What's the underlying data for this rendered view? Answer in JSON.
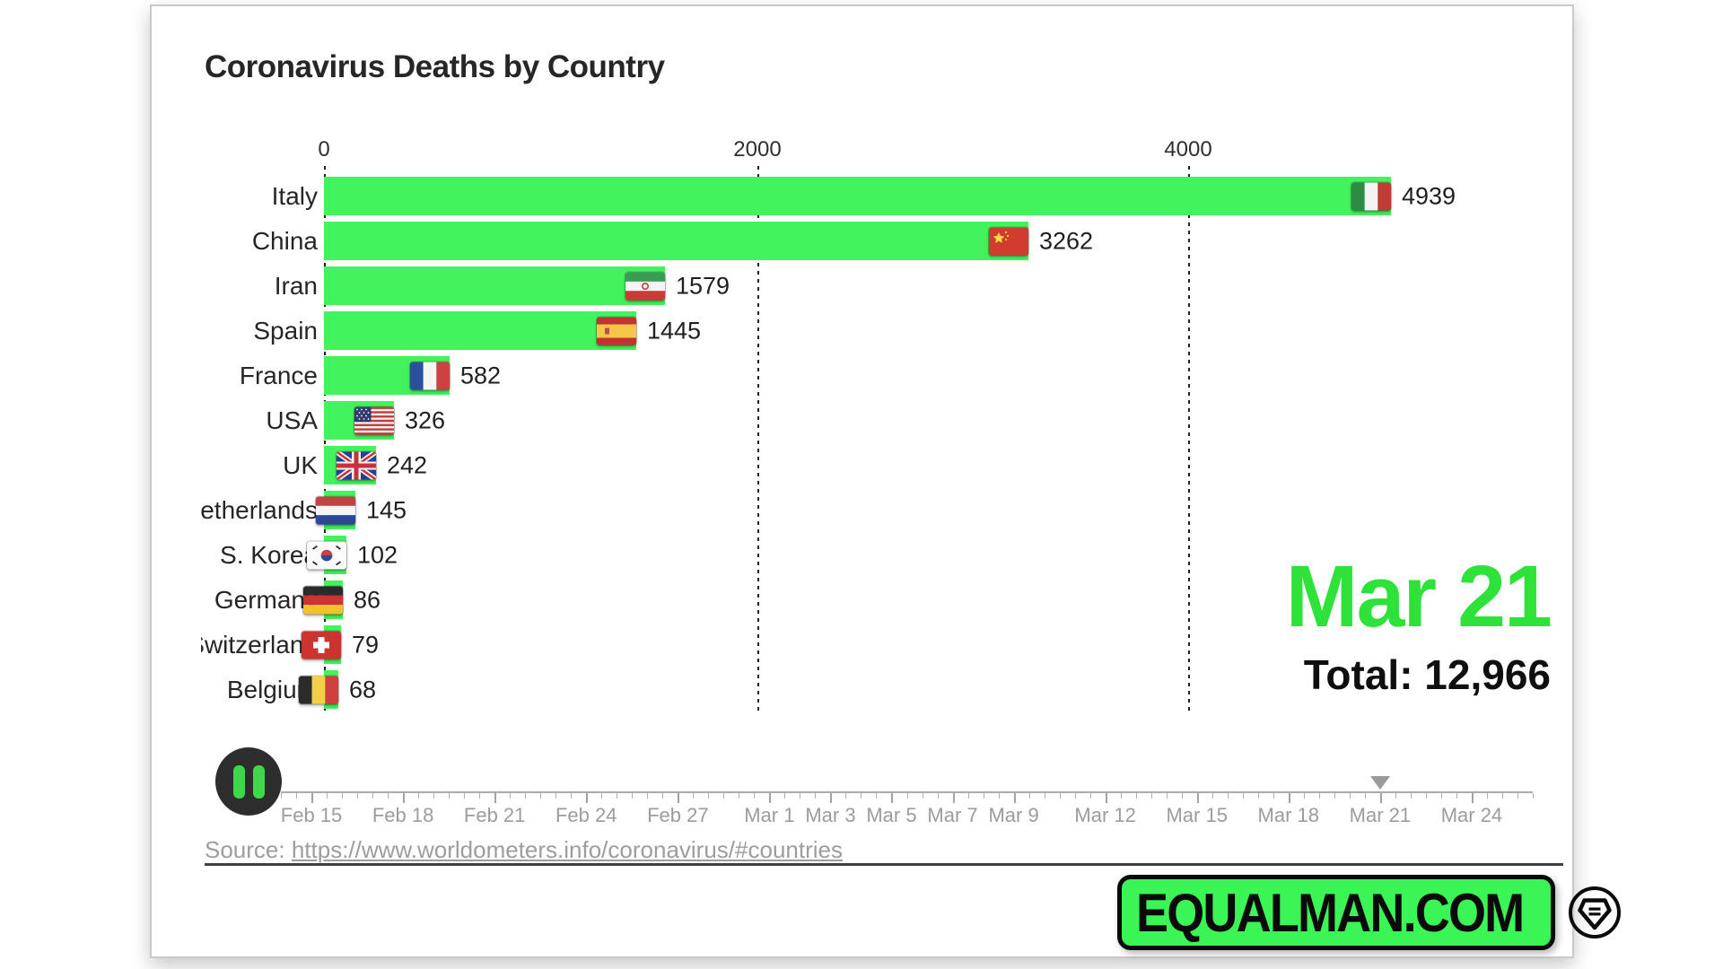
{
  "window": {
    "title": "Coronavirus Deaths by Country"
  },
  "chart_data": {
    "type": "bar",
    "orientation": "horizontal",
    "title": "Coronavirus Deaths by Country",
    "bar_color": "#43f35d",
    "x_axis": {
      "tick_labels": [
        "0",
        "2000",
        "4000"
      ],
      "tick_values": [
        0,
        2000,
        4000
      ],
      "grid": "dashed-vertical",
      "range_max": 5200
    },
    "categories": [
      "Italy",
      "China",
      "Iran",
      "Spain",
      "France",
      "USA",
      "UK",
      "Netherlands",
      "S. Korea",
      "Germany",
      "Switzerland",
      "Belgium"
    ],
    "values": [
      4939,
      3262,
      1579,
      1445,
      582,
      326,
      242,
      145,
      102,
      86,
      79,
      68
    ],
    "rows": [
      {
        "label": "Italy",
        "value": 4939,
        "value_label": "4939",
        "flag": "italy",
        "flag_icon": "flag-italy-icon"
      },
      {
        "label": "China",
        "value": 3262,
        "value_label": "3262",
        "flag": "china",
        "flag_icon": "flag-china-icon"
      },
      {
        "label": "Iran",
        "value": 1579,
        "value_label": "1579",
        "flag": "iran",
        "flag_icon": "flag-iran-icon"
      },
      {
        "label": "Spain",
        "value": 1445,
        "value_label": "1445",
        "flag": "spain",
        "flag_icon": "flag-spain-icon"
      },
      {
        "label": "France",
        "value": 582,
        "value_label": "582",
        "flag": "france",
        "flag_icon": "flag-france-icon"
      },
      {
        "label": "USA",
        "value": 326,
        "value_label": "326",
        "flag": "usa",
        "flag_icon": "flag-usa-icon"
      },
      {
        "label": "UK",
        "value": 242,
        "value_label": "242",
        "flag": "uk",
        "flag_icon": "flag-uk-icon"
      },
      {
        "label": "Netherlands",
        "value": 145,
        "value_label": "145",
        "flag": "netherlands",
        "flag_icon": "flag-netherlands-icon"
      },
      {
        "label": "S. Korea",
        "value": 102,
        "value_label": "102",
        "flag": "skorea",
        "flag_icon": "flag-south-korea-icon"
      },
      {
        "label": "Germany",
        "value": 86,
        "value_label": "86",
        "flag": "germany",
        "flag_icon": "flag-germany-icon"
      },
      {
        "label": "Switzerland",
        "value": 79,
        "value_label": "79",
        "flag": "switzerland",
        "flag_icon": "flag-switzerland-icon"
      },
      {
        "label": "Belgium",
        "value": 68,
        "value_label": "68",
        "flag": "belgium",
        "flag_icon": "flag-belgium-icon"
      }
    ]
  },
  "date_display": {
    "date": "Mar 21",
    "total": "Total: 12,966",
    "date_color": "#2fe23a"
  },
  "player": {
    "state": "playing",
    "pause_icon": "pause-icon",
    "timeline": {
      "total_days": 41,
      "labels": [
        {
          "text": "Feb 15",
          "day": 1
        },
        {
          "text": "Feb 18",
          "day": 4
        },
        {
          "text": "Feb 21",
          "day": 7
        },
        {
          "text": "Feb 24",
          "day": 10
        },
        {
          "text": "Feb 27",
          "day": 13
        },
        {
          "text": "Mar 1",
          "day": 16
        },
        {
          "text": "Mar 3",
          "day": 18
        },
        {
          "text": "Mar 5",
          "day": 20
        },
        {
          "text": "Mar 7",
          "day": 22
        },
        {
          "text": "Mar 9",
          "day": 24
        },
        {
          "text": "Mar 12",
          "day": 27
        },
        {
          "text": "Mar 15",
          "day": 30
        },
        {
          "text": "Mar 18",
          "day": 33
        },
        {
          "text": "Mar 21",
          "day": 36
        },
        {
          "text": "Mar 24",
          "day": 39
        }
      ],
      "playhead": {
        "day": 36,
        "label": "Mar 21"
      }
    }
  },
  "source": {
    "prefix": "Source: ",
    "url_text": "https://www.worldometers.info/coronavirus/#countries"
  },
  "branding": {
    "logo_text": "EQUALMAN.COM",
    "badge_icon": "equalman-shield-icon",
    "bg_color": "#3bf456"
  }
}
